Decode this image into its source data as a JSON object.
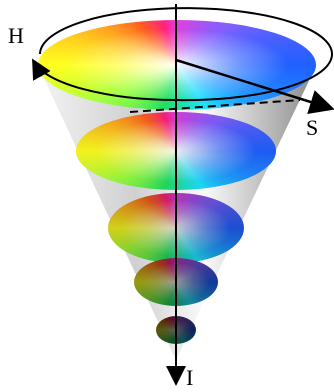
{
  "labels": {
    "hue": "H",
    "saturation": "S",
    "intensity": "I"
  }
}
